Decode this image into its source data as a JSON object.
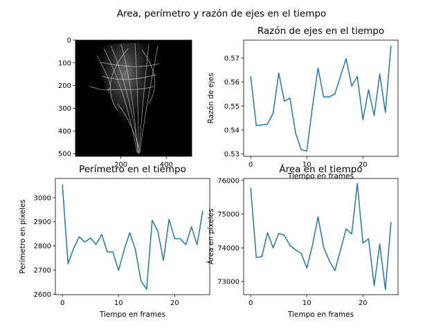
{
  "figure": {
    "suptitle": "Area, perímetro y razón de ejes en el tiempo",
    "image_panel": {
      "yticks": [
        0,
        100,
        200,
        300,
        400,
        500
      ],
      "xticks": [
        200,
        400
      ],
      "extent": [
        0,
        512,
        0,
        512
      ],
      "description_colors": {
        "background": "#000000",
        "fibers": "#e0e0e0"
      }
    },
    "line_color": "#1f77b4"
  },
  "chart_data": [
    {
      "type": "line",
      "title": "Razón de ejes en el tiempo",
      "xlabel": "Tiempo en frames",
      "ylabel": "Razón de ejes",
      "x": [
        0,
        1,
        2,
        3,
        4,
        5,
        6,
        7,
        8,
        9,
        10,
        11,
        12,
        13,
        14,
        15,
        16,
        17,
        18,
        19,
        20,
        21,
        22,
        23,
        24,
        25
      ],
      "values": [
        0.5625,
        0.5418,
        0.5421,
        0.5424,
        0.547,
        0.5638,
        0.552,
        0.5533,
        0.5387,
        0.5318,
        0.5312,
        0.5495,
        0.5658,
        0.5538,
        0.5538,
        0.555,
        0.5624,
        0.5698,
        0.5583,
        0.5623,
        0.5443,
        0.5568,
        0.546,
        0.5634,
        0.5473,
        0.5752
      ],
      "xlim": [
        -1.25,
        26.25
      ],
      "ylim": [
        0.529,
        0.5775
      ],
      "xticks": [
        0,
        10,
        20
      ],
      "yticks": [
        0.53,
        0.54,
        0.55,
        0.56,
        0.57
      ],
      "ytick_labels": [
        "0.53",
        "0.54",
        "0.55",
        "0.56",
        "0.57"
      ]
    },
    {
      "type": "line",
      "title": "Perímetro en el tiempo",
      "xlabel": "Tiempo en frames",
      "ylabel": "Perímetro en píxeles",
      "x": [
        0,
        1,
        2,
        3,
        4,
        5,
        6,
        7,
        8,
        9,
        10,
        11,
        12,
        13,
        14,
        15,
        16,
        17,
        18,
        19,
        20,
        21,
        22,
        23,
        24,
        25
      ],
      "values": [
        3055,
        2726,
        2790,
        2838,
        2816,
        2833,
        2806,
        2848,
        2775,
        2775,
        2698,
        2784,
        2855,
        2786,
        2655,
        2620,
        2906,
        2862,
        2740,
        2910,
        2830,
        2830,
        2805,
        2880,
        2805,
        2945
      ],
      "xlim": [
        -1.25,
        26.25
      ],
      "ylim": [
        2598,
        3080
      ],
      "xticks": [
        0,
        10,
        20
      ],
      "yticks": [
        2600,
        2700,
        2800,
        2900,
        3000
      ],
      "ytick_labels": [
        "2600",
        "2700",
        "2800",
        "2900",
        "3000"
      ]
    },
    {
      "type": "line",
      "title": "Área en el tiempo",
      "xlabel": "Tiempo en frames",
      "ylabel": "Área en píxeles",
      "x": [
        0,
        1,
        2,
        3,
        4,
        5,
        6,
        7,
        8,
        9,
        10,
        11,
        12,
        13,
        14,
        15,
        16,
        17,
        18,
        19,
        20,
        21,
        22,
        23,
        24,
        25
      ],
      "values": [
        75780,
        73710,
        73740,
        74450,
        74000,
        74430,
        74370,
        74070,
        73940,
        73840,
        73400,
        74070,
        74920,
        74020,
        73620,
        73320,
        73930,
        74560,
        74410,
        75910,
        74140,
        74270,
        72880,
        74110,
        72760,
        74760
      ],
      "xlim": [
        -1.25,
        26.25
      ],
      "ylim": [
        72610,
        76060
      ],
      "xticks": [
        0,
        10,
        20
      ],
      "yticks": [
        73000,
        74000,
        75000,
        76000
      ],
      "ytick_labels": [
        "73000",
        "74000",
        "75000",
        "76000"
      ]
    }
  ]
}
